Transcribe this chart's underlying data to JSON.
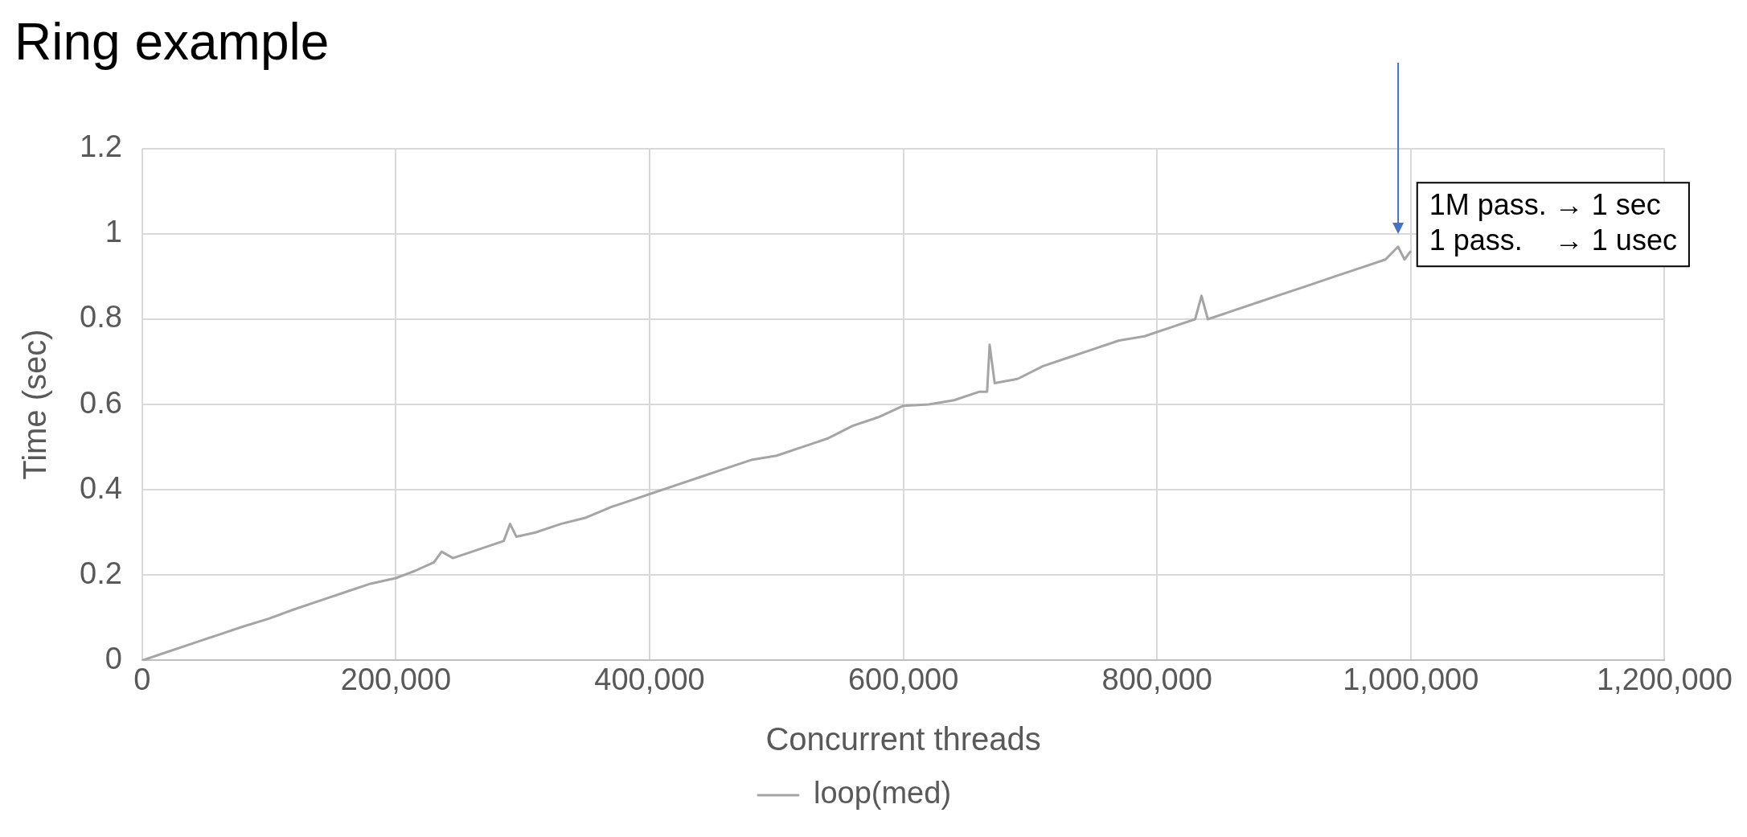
{
  "chart_data": {
    "type": "line",
    "title": "Ring example",
    "xlabel": "Concurrent threads",
    "ylabel": "Time (sec)",
    "x": [
      0,
      20000,
      40000,
      60000,
      80000,
      100000,
      120000,
      140000,
      160000,
      180000,
      200000,
      215000,
      230000,
      236000,
      245000,
      260000,
      275000,
      285000,
      290000,
      295000,
      310000,
      330000,
      350000,
      370000,
      390000,
      400000,
      420000,
      440000,
      460000,
      480000,
      500000,
      520000,
      540000,
      560000,
      580000,
      600000,
      620000,
      640000,
      660000,
      666000,
      668000,
      672000,
      690000,
      710000,
      730000,
      750000,
      770000,
      790000,
      810000,
      830000,
      835000,
      840000,
      860000,
      880000,
      900000,
      920000,
      940000,
      960000,
      980000,
      990000,
      995000,
      1000000
    ],
    "series": [
      {
        "name": "loop(med)",
        "color": "#a5a5a5",
        "values": [
          0,
          0.02,
          0.04,
          0.06,
          0.08,
          0.098,
          0.12,
          0.14,
          0.16,
          0.18,
          0.193,
          0.21,
          0.23,
          0.255,
          0.24,
          0.255,
          0.27,
          0.28,
          0.32,
          0.29,
          0.3,
          0.32,
          0.335,
          0.36,
          0.38,
          0.39,
          0.41,
          0.43,
          0.45,
          0.47,
          0.48,
          0.5,
          0.52,
          0.55,
          0.57,
          0.597,
          0.6,
          0.61,
          0.63,
          0.63,
          0.74,
          0.65,
          0.66,
          0.69,
          0.71,
          0.73,
          0.75,
          0.76,
          0.78,
          0.8,
          0.855,
          0.8,
          0.82,
          0.84,
          0.86,
          0.88,
          0.9,
          0.92,
          0.94,
          0.97,
          0.94,
          0.96
        ]
      }
    ],
    "xlim": [
      0,
      1200000
    ],
    "xticks": [
      0,
      {
        "value": 200000,
        "label": "200,000"
      },
      {
        "value": 400000,
        "label": "400,000"
      },
      {
        "value": 600000,
        "label": "600,000"
      },
      {
        "value": 800000,
        "label": "800,000"
      },
      {
        "value": 1000000,
        "label": "1,000,000"
      },
      {
        "value": 1200000,
        "label": "1,200,000"
      }
    ],
    "ylim": [
      0,
      1.2
    ],
    "yticks": [
      0,
      0.2,
      0.4,
      0.6,
      0.8,
      1,
      1.2
    ],
    "grid": true,
    "legend": "bottom",
    "marker": "none",
    "line_style": "solid",
    "annotations": [
      "1M pass. → 1 sec",
      "1 pass.    → 1 usec"
    ]
  }
}
